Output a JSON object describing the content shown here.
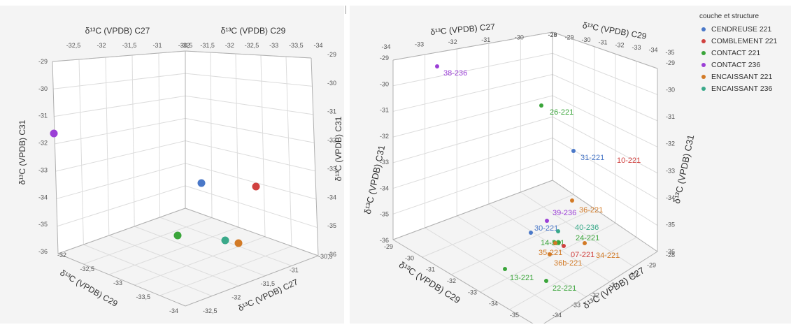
{
  "legend": {
    "title": "couche et structure",
    "items": [
      {
        "label": "CENDREUSE 221",
        "color": "#4a78c8"
      },
      {
        "label": "COMBLEMENT 221",
        "color": "#d0413f"
      },
      {
        "label": "CONTACT 221",
        "color": "#3aa53a"
      },
      {
        "label": "CONTACT 236",
        "color": "#9b3fd6"
      },
      {
        "label": "ENCAISSANT 221",
        "color": "#d27a26"
      },
      {
        "label": "ENCAISSANT 236",
        "color": "#3aa98a"
      }
    ]
  },
  "chart_data": [
    {
      "type": "scatter",
      "title": "",
      "axis_labels": {
        "top_left": "δ¹³C (VPDB) C27",
        "top_right": "δ¹³C (VPDB) C29",
        "left": "δ¹³C (VPDB) C31",
        "right": "δ¹³C (VPDB) C31",
        "bottom_left": "δ¹³C (VPDB) C29",
        "bottom_right": "δ¹³C (VPDB) C27"
      },
      "ticks": {
        "top_left": [
          "-32,5",
          "-32",
          "-31,5",
          "-31",
          "-30,5"
        ],
        "top_right": [
          "-32",
          "-31,5",
          "-32",
          "-32,5",
          "-33",
          "-33,5",
          "-34"
        ],
        "left": [
          "-29",
          "-30",
          "-31",
          "-32",
          "-33",
          "-34",
          "-35",
          "-36"
        ],
        "right": [
          "-29",
          "-30",
          "-31",
          "-32",
          "-33",
          "-34",
          "-35",
          "-36"
        ],
        "bottom_left": [
          "-32",
          "-32,5",
          "-33",
          "-33,5",
          "-34"
        ],
        "bottom_right": [
          "-30,5",
          "-31",
          "-31,5",
          "-32",
          "-32,5"
        ]
      },
      "points": [
        {
          "group": "CONTACT 236",
          "color": "#9b3fd6"
        },
        {
          "group": "CENDREUSE 221",
          "color": "#4a78c8"
        },
        {
          "group": "COMBLEMENT 221",
          "color": "#d0413f"
        },
        {
          "group": "CONTACT 221",
          "color": "#3aa53a"
        },
        {
          "group": "ENCAISSANT 236",
          "color": "#3aa98a"
        },
        {
          "group": "ENCAISSANT 221",
          "color": "#d27a26"
        }
      ]
    },
    {
      "type": "scatter",
      "title": "",
      "axis_labels": {
        "top_left": "δ¹³C (VPDB) C27",
        "top_right": "δ¹³C (VPDB) C29",
        "left": "δ¹³C (VPDB) C31",
        "right": "δ¹³C (VPDB) C31",
        "bottom_left": "δ¹³C (VPDB) C29",
        "bottom_right": "δ¹³C (VPDB) C27"
      },
      "ticks": {
        "top_left": [
          "-34",
          "-33",
          "-32",
          "-31",
          "-30",
          "-29"
        ],
        "top_right": [
          "-28",
          "-29",
          "-30",
          "-31",
          "-32",
          "-33",
          "-34",
          "-35"
        ],
        "left": [
          "-29",
          "-30",
          "-31",
          "-32",
          "-33",
          "-34",
          "-35",
          "-36"
        ],
        "right": [
          "-29",
          "-30",
          "-31",
          "-32",
          "-33",
          "-34",
          "-35",
          "-36"
        ],
        "bottom_left": [
          "-29",
          "-30",
          "-31",
          "-32",
          "-33",
          "-34",
          "-35"
        ],
        "bottom_right": [
          "-28",
          "-29",
          "-30",
          "-31",
          "-32",
          "-33",
          "-34"
        ]
      },
      "points": [
        {
          "label": "38-236",
          "group": "CONTACT 236",
          "color": "#9b3fd6"
        },
        {
          "label": "26-221",
          "group": "CONTACT 221",
          "color": "#3aa53a"
        },
        {
          "label": "31-221",
          "group": "CENDREUSE 221",
          "color": "#4a78c8"
        },
        {
          "label": "10-221",
          "group": "COMBLEMENT 221",
          "color": "#d0413f"
        },
        {
          "label": "36-221",
          "group": "ENCAISSANT 221",
          "color": "#d27a26"
        },
        {
          "label": "39-236",
          "group": "CONTACT 236",
          "color": "#9b3fd6"
        },
        {
          "label": "30-221",
          "group": "CENDREUSE 221",
          "color": "#4a78c8"
        },
        {
          "label": "40-236",
          "group": "ENCAISSANT 236",
          "color": "#3aa98a"
        },
        {
          "label": "24-221",
          "group": "CONTACT 221",
          "color": "#3aa53a"
        },
        {
          "label": "14-221",
          "group": "CONTACT 221",
          "color": "#3aa53a"
        },
        {
          "label": "35-221",
          "group": "ENCAISSANT 221",
          "color": "#d27a26"
        },
        {
          "label": "07-221",
          "group": "COMBLEMENT 221",
          "color": "#d0413f"
        },
        {
          "label": "34-221",
          "group": "ENCAISSANT 221",
          "color": "#d27a26"
        },
        {
          "label": "36b-221",
          "group": "ENCAISSANT 221",
          "color": "#d27a26"
        },
        {
          "label": "13-221",
          "group": "CONTACT 221",
          "color": "#3aa53a"
        },
        {
          "label": "22-221",
          "group": "CONTACT 221",
          "color": "#3aa53a"
        }
      ]
    }
  ]
}
